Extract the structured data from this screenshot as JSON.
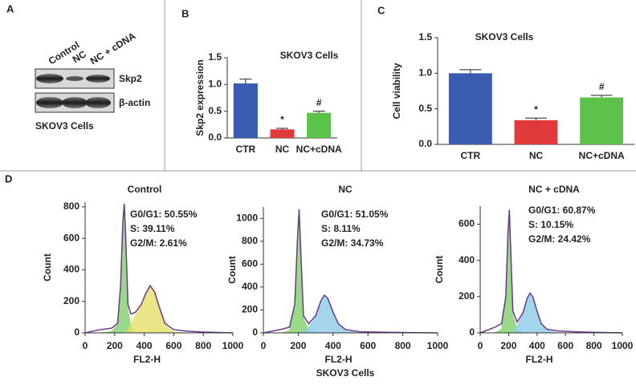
{
  "panel_labels": [
    "A",
    "B",
    "C",
    "D"
  ],
  "blot": {
    "lanes": [
      "Control",
      "NC",
      "NC + cDNA"
    ],
    "bands": [
      "Skp2",
      "β-actin"
    ],
    "caption": "SKOV3 Cells"
  },
  "footer": "SKOV3 Cells",
  "chart_data": [
    {
      "type": "bar",
      "title": "SKOV3 Cells",
      "ylabel": "Skp2 expression",
      "categories": [
        "CTR",
        "NC",
        "NC+cDNA"
      ],
      "values": [
        1.02,
        0.16,
        0.47
      ],
      "errors": [
        0.08,
        0.02,
        0.03
      ],
      "significance": [
        null,
        "*",
        "#"
      ],
      "colors": [
        "#3a5cb0",
        "#e03a3a",
        "#5cc24a"
      ],
      "ylim": [
        0,
        1.5
      ],
      "yticks": [
        {
          "value": 0,
          "label": "0.0"
        },
        0.5,
        {
          "value": 1,
          "label": "1.0"
        },
        1.5
      ]
    },
    {
      "type": "bar",
      "title": "SKOV3 Cells",
      "ylabel": "Cell viability",
      "categories": [
        "CTR",
        "NC",
        "NC+cDNA"
      ],
      "values": [
        1.0,
        0.34,
        0.66
      ],
      "errors": [
        0.05,
        0.03,
        0.03
      ],
      "significance": [
        null,
        "*",
        "#"
      ],
      "colors": [
        "#3a5cb0",
        "#e03a3a",
        "#5cc24a"
      ],
      "ylim": [
        0,
        1.5
      ],
      "yticks": [
        {
          "value": 0,
          "label": "0.0"
        },
        0.5,
        {
          "value": 1,
          "label": "1.0"
        },
        1.5
      ]
    },
    {
      "type": "area",
      "title": "Control",
      "xlabel": "FL2-H",
      "ylabel": "Count",
      "annotations": [
        "G0/G1: 50.55%",
        "S: 39.11%",
        "G2/M: 2.61%"
      ],
      "x": [
        0,
        100,
        180,
        220,
        240,
        255,
        265,
        275,
        290,
        310,
        340,
        380,
        410,
        440,
        470,
        500,
        540,
        600,
        700,
        800,
        1000
      ],
      "series": [
        {
          "color": "#7fcf6a",
          "values": [
            0,
            0,
            10,
            50,
            290,
            690,
            810,
            590,
            150,
            40,
            5,
            0,
            0,
            0,
            0,
            0,
            0,
            0,
            0,
            0,
            0
          ]
        },
        {
          "color": "#e6e06a",
          "values": [
            0,
            0,
            0,
            0,
            0,
            0,
            0,
            0,
            10,
            60,
            110,
            170,
            240,
            290,
            250,
            160,
            50,
            5,
            0,
            0,
            0
          ]
        },
        {
          "color": "#6a3a8a",
          "values": [
            0,
            20,
            30,
            60,
            300,
            700,
            820,
            600,
            180,
            120,
            130,
            180,
            250,
            300,
            260,
            170,
            60,
            20,
            10,
            5,
            0
          ]
        }
      ],
      "xlim": [
        0,
        1000
      ],
      "xticks": [
        0,
        200,
        400,
        600,
        800,
        1000
      ],
      "ylim": [
        0,
        830
      ],
      "yticks": [
        0,
        200,
        400,
        600,
        800
      ]
    },
    {
      "type": "area",
      "title": "NC",
      "xlabel": "FL2-H",
      "ylabel": "Count",
      "annotations": [
        "G0/G1: 51.05%",
        "S: 8.11%",
        "G2/M: 34.73%"
      ],
      "x": [
        0,
        100,
        150,
        180,
        195,
        205,
        215,
        230,
        260,
        300,
        330,
        350,
        370,
        400,
        430,
        470,
        550,
        700,
        1000
      ],
      "series": [
        {
          "color": "#7fcf6a",
          "values": [
            0,
            0,
            20,
            230,
            790,
            1070,
            690,
            130,
            20,
            0,
            0,
            0,
            0,
            0,
            0,
            0,
            0,
            0,
            0
          ]
        },
        {
          "color": "#8ccbe6",
          "values": [
            0,
            0,
            0,
            0,
            0,
            0,
            0,
            10,
            50,
            140,
            270,
            320,
            290,
            170,
            70,
            20,
            0,
            0,
            0
          ]
        },
        {
          "color": "#6a3a8a",
          "values": [
            0,
            30,
            50,
            250,
            800,
            1080,
            700,
            150,
            80,
            150,
            280,
            330,
            300,
            180,
            80,
            30,
            10,
            5,
            0
          ]
        }
      ],
      "xlim": [
        0,
        1000
      ],
      "xticks": [
        0,
        200,
        400,
        600,
        800,
        1000
      ],
      "ylim": [
        0,
        1100
      ],
      "yticks": [
        0,
        200,
        400,
        600,
        800,
        1000
      ]
    },
    {
      "type": "area",
      "title": "NC + cDNA",
      "xlabel": "FL2-H",
      "ylabel": "Count",
      "annotations": [
        "G0/G1: 60.87%",
        "S: 10.15%",
        "G2/M: 24.42%"
      ],
      "x": [
        0,
        100,
        150,
        180,
        195,
        205,
        215,
        230,
        260,
        300,
        330,
        350,
        370,
        400,
        430,
        470,
        550,
        700,
        1000
      ],
      "series": [
        {
          "color": "#7fcf6a",
          "values": [
            0,
            0,
            20,
            180,
            540,
            670,
            440,
            100,
            15,
            0,
            0,
            0,
            0,
            0,
            0,
            0,
            0,
            0,
            0
          ]
        },
        {
          "color": "#8ccbe6",
          "values": [
            0,
            0,
            0,
            0,
            0,
            0,
            0,
            5,
            40,
            100,
            180,
            210,
            190,
            110,
            40,
            15,
            0,
            0,
            0
          ]
        },
        {
          "color": "#6a3a8a",
          "values": [
            0,
            30,
            50,
            200,
            550,
            680,
            450,
            120,
            60,
            110,
            190,
            220,
            200,
            120,
            50,
            20,
            10,
            5,
            0
          ]
        }
      ],
      "xlim": [
        0,
        1000
      ],
      "xticks": [
        0,
        200,
        400,
        600,
        800,
        1000
      ],
      "ylim": [
        0,
        700
      ],
      "yticks": [
        0,
        200,
        400,
        600
      ]
    }
  ]
}
